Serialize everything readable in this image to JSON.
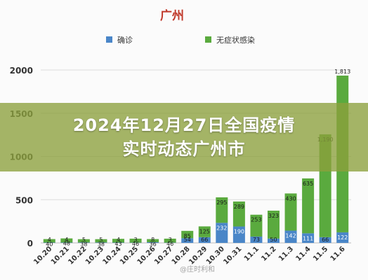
{
  "banner": {
    "headline": "2024年12月27日全国疫情实时动态广州市"
  },
  "watermark": "@庄时利和",
  "colors": {
    "confirmed": "#4a86c8",
    "asymptomatic": "#5aaa3e",
    "title": "#c0392b"
  },
  "chart_data": {
    "type": "bar",
    "stacked": true,
    "title": "广州",
    "legend_position": "top",
    "categories": [
      "10.20",
      "10.21",
      "10.22",
      "10.23",
      "10.24",
      "10.25",
      "10.26",
      "10.27",
      "10.28",
      "10.29",
      "10.30",
      "10.31",
      "11.1",
      "11.2",
      "11.3",
      "11.4",
      "11.5",
      "11.6"
    ],
    "series": [
      {
        "name": "确诊",
        "values": [
          4,
          4,
          5,
          5,
          4,
          3,
          8,
          3,
          54,
          66,
          232,
          190,
          73,
          50,
          142,
          111,
          66,
          122
        ]
      },
      {
        "name": "无症状感染",
        "values": [
          40,
          48,
          38,
          38,
          43,
          46,
          36,
          46,
          85,
          125,
          295,
          289,
          253,
          323,
          430,
          635,
          1190,
          1813
        ]
      }
    ],
    "ylim": [
      0,
      2000
    ],
    "yticks": [
      0,
      500,
      1000,
      1500,
      2000
    ],
    "grid": true
  }
}
